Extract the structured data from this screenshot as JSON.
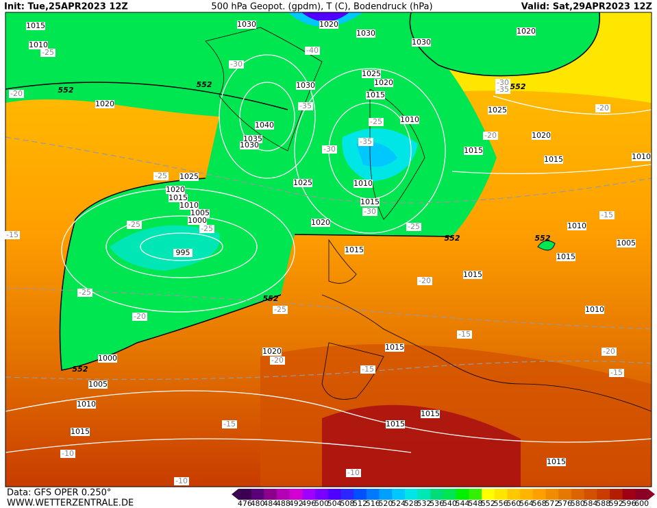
{
  "header": {
    "init": "Init: Tue,25APR2023 12Z",
    "title": "500 hPa Geopot. (gpdm), T (C), Bodendruck (hPa)",
    "valid": "Valid: Sat,29APR2023 12Z"
  },
  "footer": {
    "source": "Data: GFS OPER 0.250°",
    "website": "WWW.WETTERZENTRALE.DE"
  },
  "colorbar": {
    "values": [
      476,
      480,
      484,
      488,
      492,
      496,
      500,
      504,
      508,
      512,
      516,
      520,
      524,
      528,
      532,
      536,
      540,
      544,
      548,
      552,
      556,
      560,
      564,
      568,
      572,
      576,
      580,
      584,
      588,
      592,
      596,
      600
    ],
    "colors": [
      "#3c0050",
      "#5a0078",
      "#8c008c",
      "#b400b4",
      "#d200d2",
      "#a000ff",
      "#7800ff",
      "#5000ff",
      "#2828ff",
      "#0050ff",
      "#0078ff",
      "#00a0ff",
      "#00c8ff",
      "#00e6e6",
      "#00e6b4",
      "#00dc78",
      "#00e650",
      "#00f000",
      "#32f000",
      "#ffff00",
      "#ffe600",
      "#ffc800",
      "#ffb400",
      "#ffa000",
      "#f08c00",
      "#e67800",
      "#dc6400",
      "#d25000",
      "#c83c00",
      "#b41e00",
      "#a00014",
      "#8c0028"
    ]
  },
  "map_labels": {
    "isobars": [
      "1015",
      "1010",
      "1030",
      "1020",
      "1030",
      "1020",
      "1030",
      "1025",
      "1020",
      "1030",
      "1015",
      "1020",
      "1010",
      "1025",
      "1040",
      "1035",
      "1030",
      "1020",
      "1015",
      "1015",
      "1010",
      "1025",
      "1025",
      "1010",
      "1020",
      "1015",
      "1010",
      "1005",
      "1000",
      "1015",
      "1020",
      "1010",
      "1005",
      "995",
      "1015",
      "1015",
      "1015",
      "1010",
      "1015",
      "1020",
      "1000",
      "1005",
      "1010",
      "1015",
      "1015",
      "1015",
      "1015"
    ],
    "temperature": [
      "-25",
      "-20",
      "-40",
      "-30",
      "-35",
      "-25",
      "-35",
      "-30",
      "-25",
      "-25",
      "-25",
      "-30",
      "-25",
      "-20",
      "-30",
      "-35",
      "-20",
      "-15",
      "-15",
      "-25",
      "-20",
      "-25",
      "-20",
      "-15",
      "-20",
      "-15",
      "-20",
      "-15",
      "-15",
      "-10",
      "-10",
      "-10"
    ],
    "height_552": [
      "552",
      "552",
      "552",
      "552",
      "552",
      "552",
      "552"
    ]
  }
}
